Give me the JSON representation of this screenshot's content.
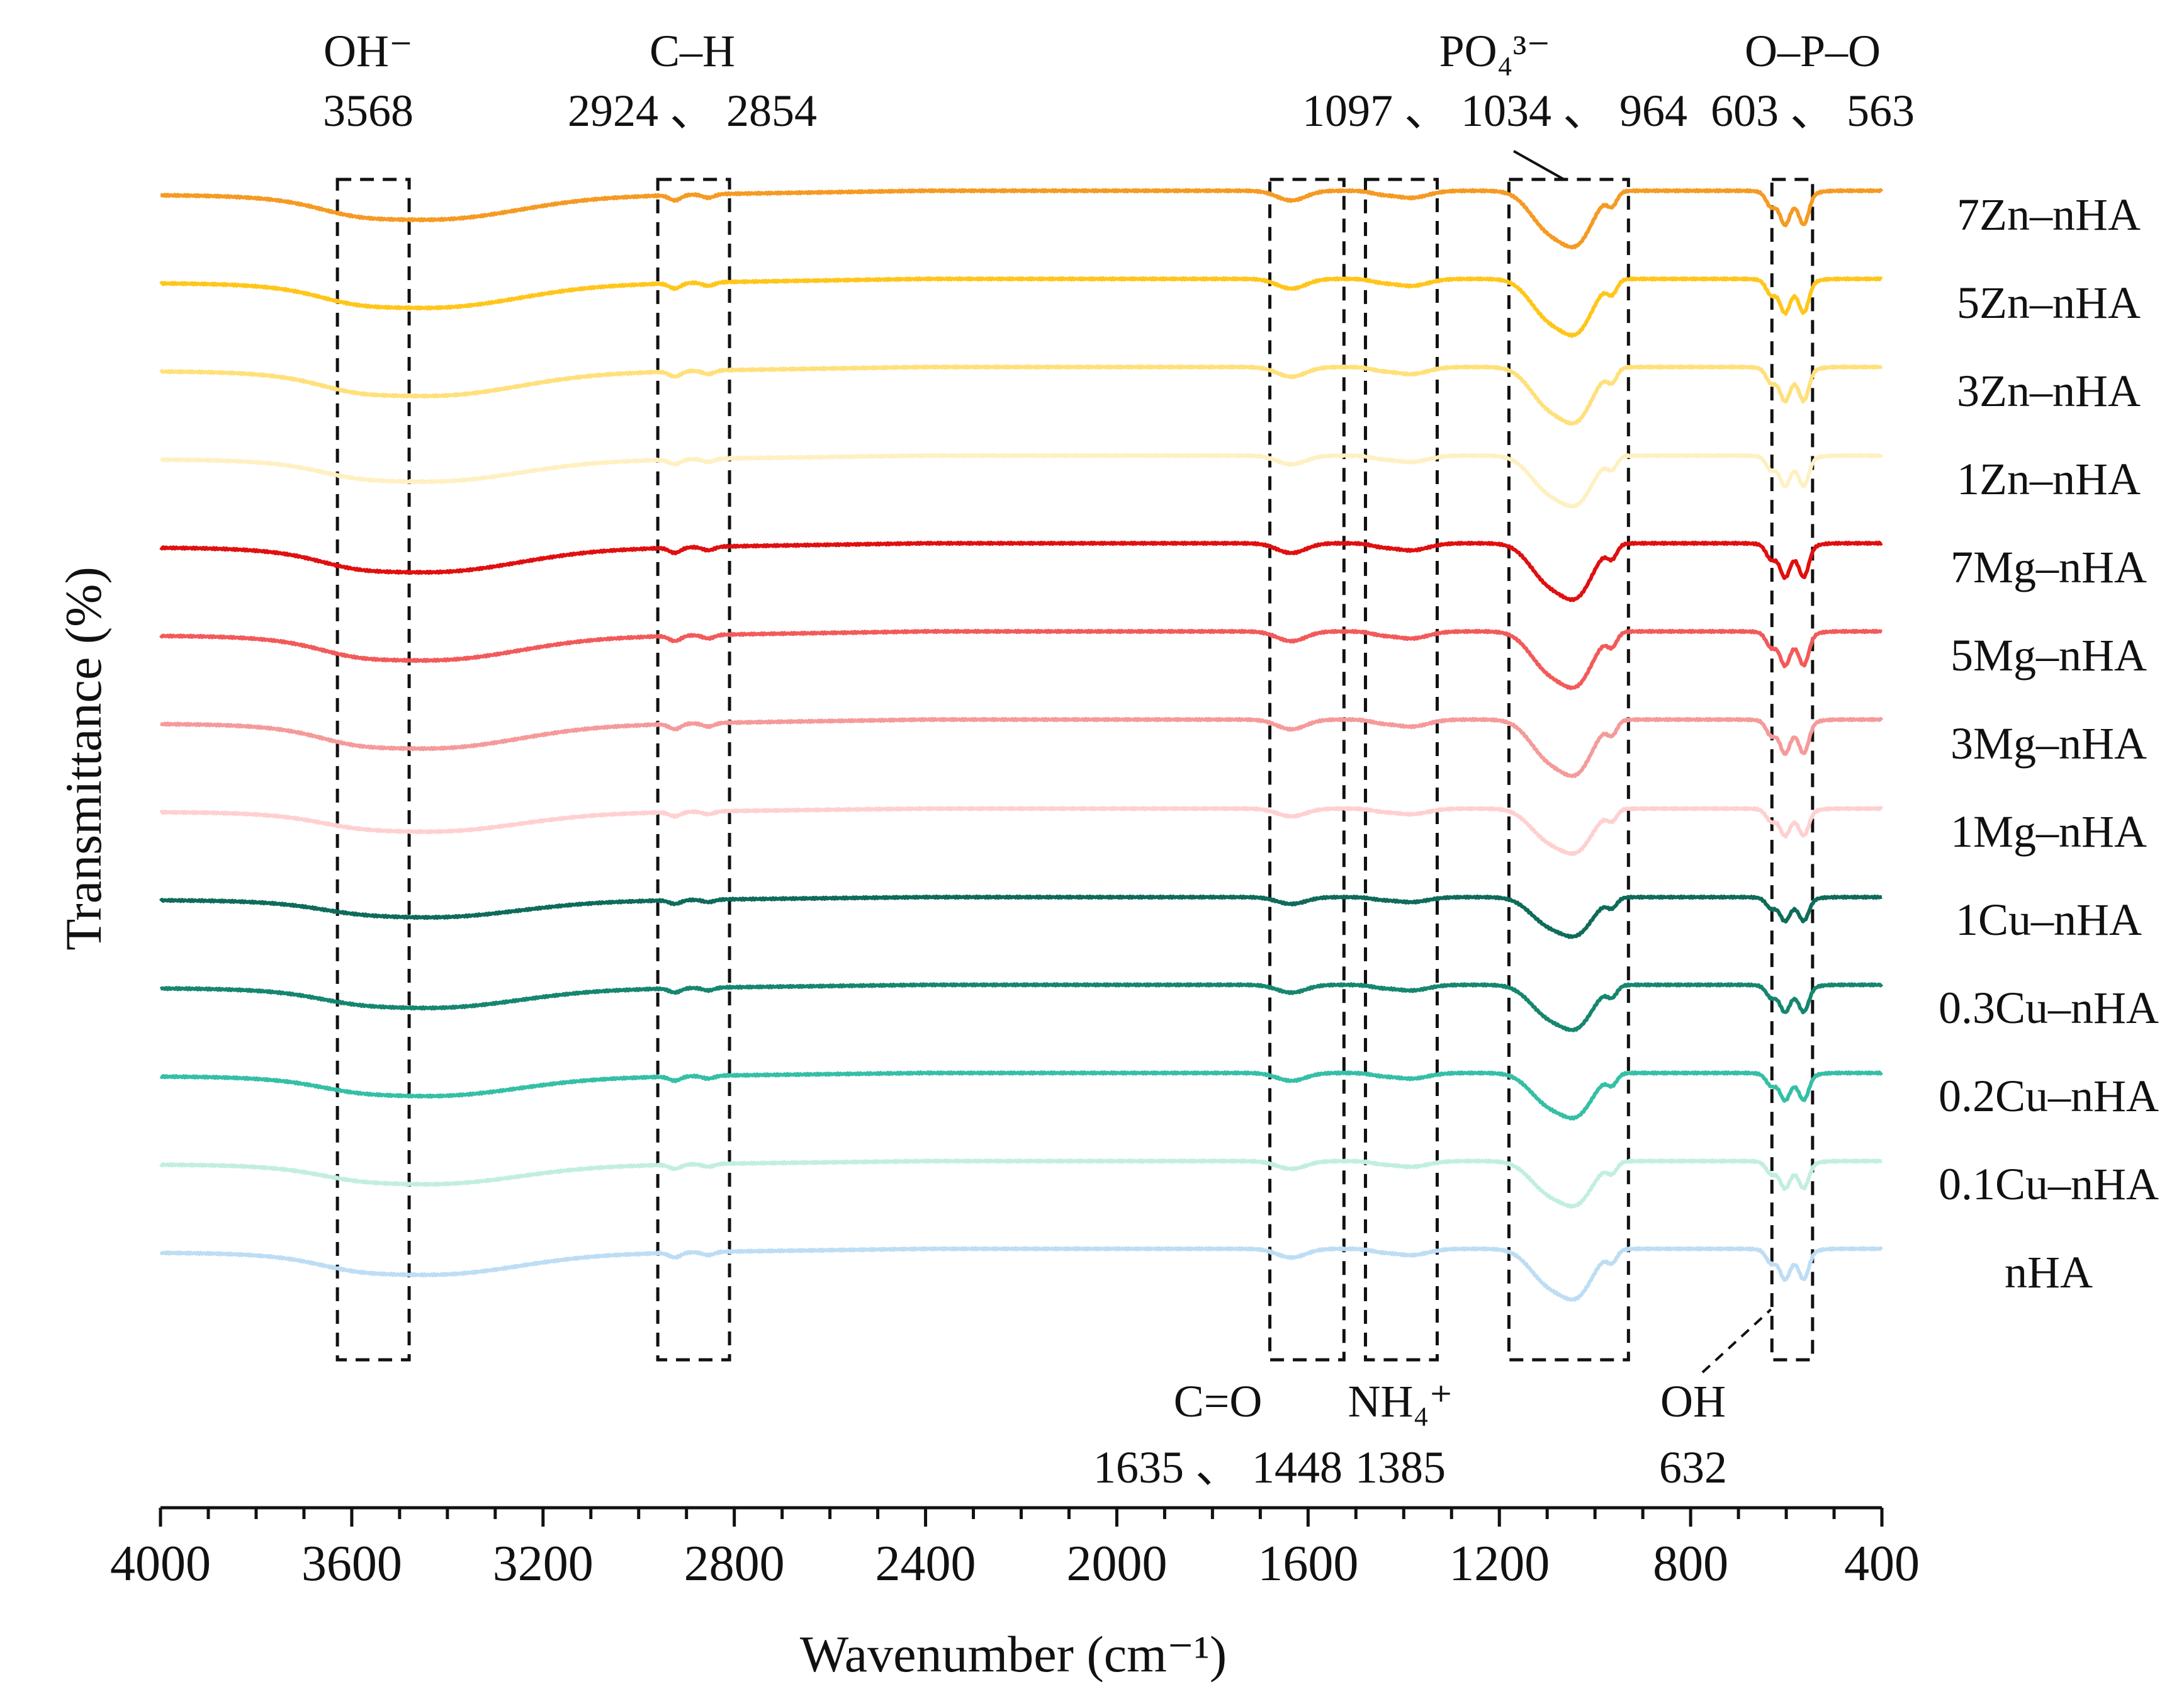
{
  "chart_data": {
    "type": "line",
    "title": "",
    "xlabel": "Wavenumber (cm⁻¹)",
    "ylabel": "Transmittance (%)",
    "xlim": [
      4000,
      400
    ],
    "x_reversed": true,
    "x_ticks": [
      4000,
      3600,
      3200,
      2800,
      2400,
      2000,
      1600,
      1200,
      800,
      400
    ],
    "x_minor_step": 100,
    "grid": false,
    "legend": "right, inline with each trace",
    "series": [
      {
        "name": "7Zn–nHA",
        "color": "#F59A23",
        "offset": 0,
        "scale": 1.0
      },
      {
        "name": "5Zn–nHA",
        "color": "#FFC61A",
        "offset": 1,
        "scale": 1.0
      },
      {
        "name": "3Zn–nHA",
        "color": "#FFE07A",
        "offset": 2,
        "scale": 1.0
      },
      {
        "name": "1Zn–nHA",
        "color": "#FFF0C2",
        "offset": 3,
        "scale": 0.9
      },
      {
        "name": "7Mg–nHA",
        "color": "#E01010",
        "offset": 4,
        "scale": 1.0
      },
      {
        "name": "5Mg–nHA",
        "color": "#F25A5A",
        "offset": 5,
        "scale": 1.0
      },
      {
        "name": "3Mg–nHA",
        "color": "#F59A9A",
        "offset": 6,
        "scale": 1.0
      },
      {
        "name": "1Mg–nHA",
        "color": "#FFD0D0",
        "offset": 7,
        "scale": 0.8
      },
      {
        "name": "1Cu–nHA",
        "color": "#0F6B5A",
        "offset": 8,
        "scale": 0.7
      },
      {
        "name": "0.3Cu–nHA",
        "color": "#16866F",
        "offset": 9,
        "scale": 0.8
      },
      {
        "name": "0.2Cu–nHA",
        "color": "#35BFA6",
        "offset": 10,
        "scale": 0.8
      },
      {
        "name": "0.1Cu–nHA",
        "color": "#C2EEE0",
        "offset": 11,
        "scale": 0.8
      },
      {
        "name": "nHA",
        "color": "#BDDDF4",
        "offset": 12,
        "scale": 0.9
      }
    ],
    "bands": [
      {
        "id": "oh-stretch",
        "x_range": [
          3630,
          3480
        ],
        "label_line1": "OH⁻",
        "label_line2": "3568",
        "label_side": "top"
      },
      {
        "id": "c-h",
        "x_range": [
          2960,
          2810
        ],
        "label_line1": "C–H",
        "label_line2": "2924 、 2854",
        "label_side": "top"
      },
      {
        "id": "c-o",
        "x_range": [
          1680,
          1525
        ],
        "label_line1": "C=O",
        "label_line2": "1635 、 1448",
        "label_side": "bottom"
      },
      {
        "id": "nh4",
        "x_range": [
          1480,
          1330
        ],
        "label_line1": "NH₄⁺",
        "label_line2": "1385",
        "label_side": "bottom"
      },
      {
        "id": "po4",
        "x_range": [
          1180,
          930
        ],
        "label_line1": "PO₄³⁻",
        "label_line2": "1097 、 1034 、 964",
        "label_side": "top"
      },
      {
        "id": "o-p-o",
        "x_range": [
          630,
          545
        ],
        "label_line1": "O–P–O",
        "label_line2": "603 、 563",
        "label_side": "top"
      }
    ],
    "annotations": [
      {
        "label_line1": "OH",
        "label_line2": "632",
        "points_to": 632
      }
    ]
  }
}
